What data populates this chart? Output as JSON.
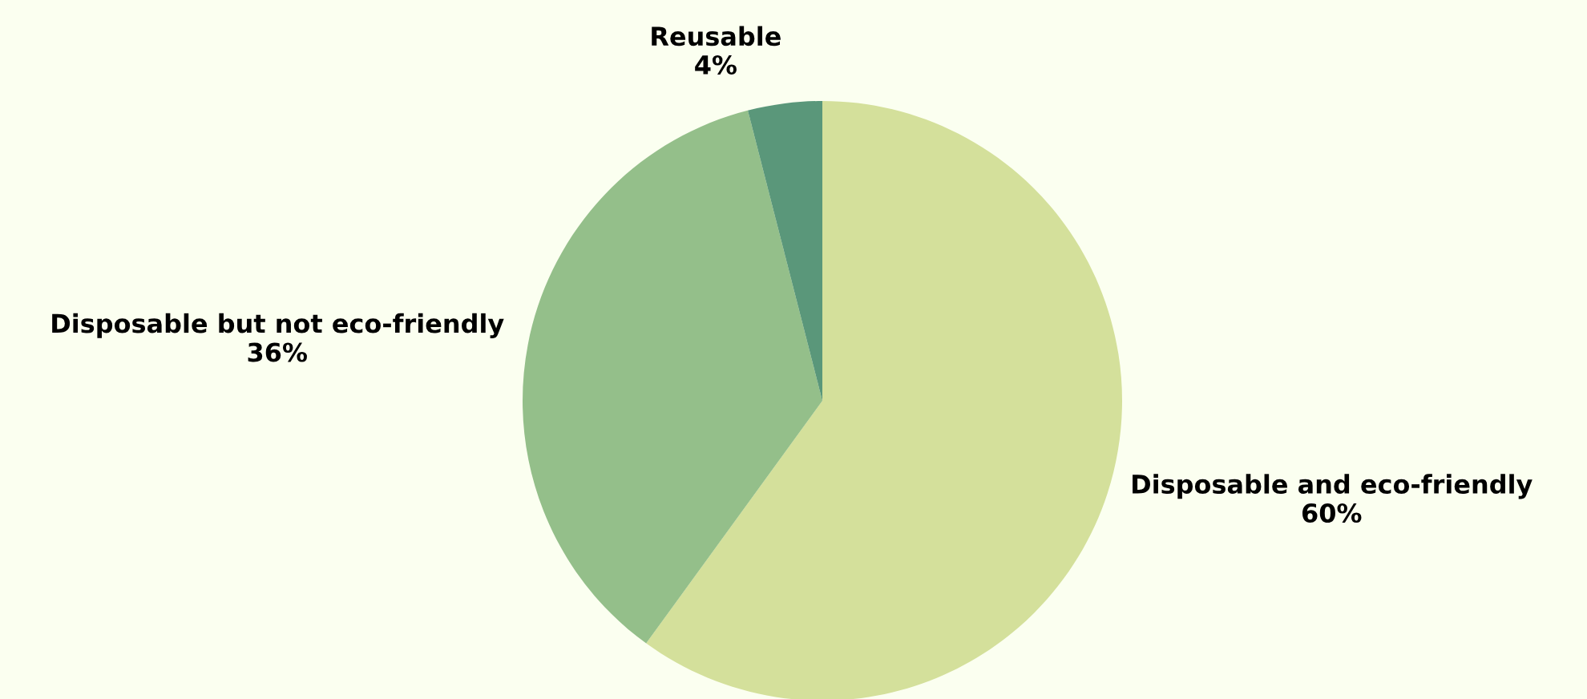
{
  "chart_data": {
    "type": "pie",
    "categories": [
      "Disposable and eco-friendly",
      "Disposable but not eco-friendly",
      "Reusable"
    ],
    "values": [
      60,
      36,
      4
    ],
    "value_labels": [
      "60%",
      "36%",
      "4%"
    ],
    "colors": [
      "#d4e09b",
      "#94bf8a",
      "#5a977a"
    ],
    "legend": false
  }
}
